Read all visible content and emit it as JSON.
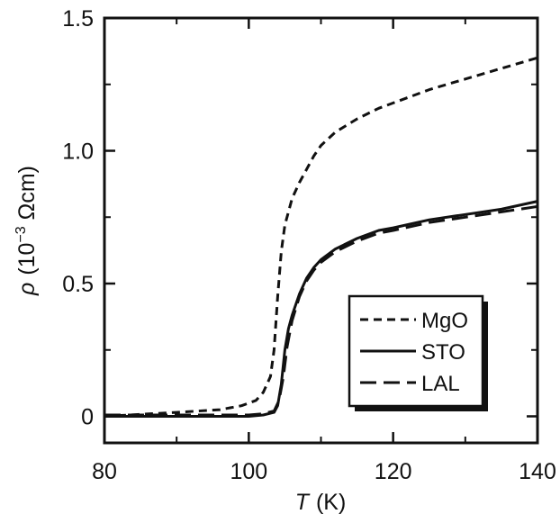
{
  "chart_data": {
    "type": "line",
    "title": "",
    "xlabel_symbol": "T",
    "xlabel_unit": "(K)",
    "ylabel_symbol": "ρ",
    "ylabel_base": "(10",
    "ylabel_exp": "−3",
    "ylabel_unit": " Ωcm)",
    "xlim": [
      80,
      140
    ],
    "ylim": [
      -0.1,
      1.5
    ],
    "x_ticks": [
      80,
      100,
      120,
      140
    ],
    "x_tick_labels": [
      "80",
      "100",
      "120",
      "140"
    ],
    "y_ticks": [
      0,
      0.5,
      1.0,
      1.5
    ],
    "y_tick_labels": [
      "0",
      "0.5",
      "1.0",
      "1.5"
    ],
    "grid": false,
    "legend_position": "bottom-right",
    "series": [
      {
        "name": "MgO",
        "style": "short-dash",
        "x": [
          80,
          90,
          96,
          99,
          101,
          102,
          103,
          103.5,
          104,
          104.5,
          105,
          106,
          107,
          108,
          109,
          110,
          112,
          115,
          118,
          120,
          125,
          130,
          135,
          140
        ],
        "y": [
          0.0,
          0.015,
          0.025,
          0.04,
          0.06,
          0.09,
          0.15,
          0.25,
          0.45,
          0.62,
          0.72,
          0.82,
          0.88,
          0.93,
          0.98,
          1.02,
          1.07,
          1.12,
          1.16,
          1.18,
          1.23,
          1.27,
          1.31,
          1.35
        ]
      },
      {
        "name": "STO",
        "style": "solid",
        "x": [
          80,
          90,
          100,
          102,
          103.5,
          104,
          104.5,
          105,
          105.5,
          106,
          107,
          108,
          109,
          110,
          112,
          115,
          118,
          120,
          125,
          130,
          135,
          140
        ],
        "y": [
          0.0,
          0.0,
          0.0,
          0.005,
          0.015,
          0.04,
          0.12,
          0.25,
          0.33,
          0.38,
          0.46,
          0.52,
          0.56,
          0.59,
          0.63,
          0.67,
          0.7,
          0.71,
          0.74,
          0.76,
          0.78,
          0.81
        ]
      },
      {
        "name": "LAL",
        "style": "long-dash",
        "x": [
          80,
          90,
          100,
          102,
          103.5,
          104.2,
          104.8,
          105.3,
          106,
          107,
          108,
          109,
          110,
          112,
          115,
          118,
          120,
          125,
          130,
          135,
          140
        ],
        "y": [
          0.005,
          0.005,
          0.005,
          0.01,
          0.02,
          0.06,
          0.15,
          0.26,
          0.36,
          0.45,
          0.51,
          0.55,
          0.58,
          0.62,
          0.66,
          0.69,
          0.7,
          0.73,
          0.75,
          0.77,
          0.79
        ]
      }
    ]
  }
}
